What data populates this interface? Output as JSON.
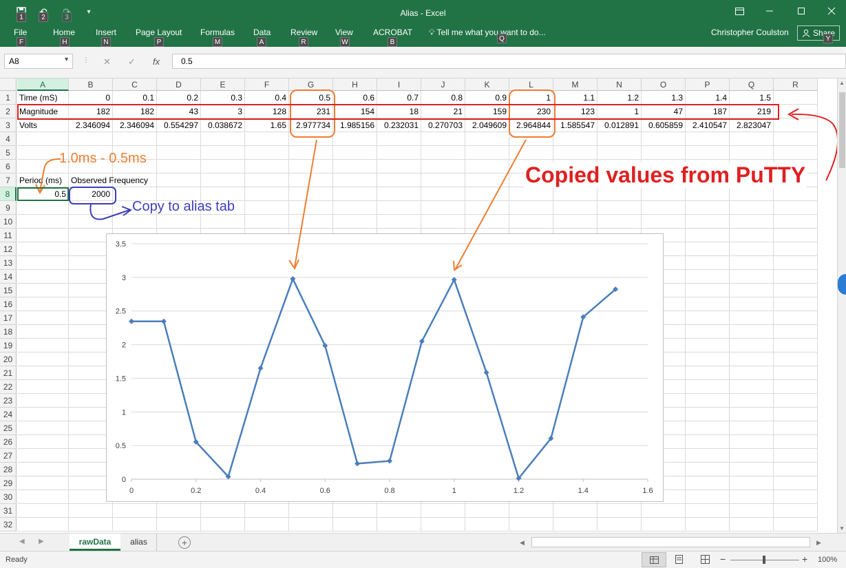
{
  "window": {
    "title": "Alias - Excel",
    "user": "Christopher Coulston",
    "share_label": "Share",
    "tell_me": "Tell me what you want to do...",
    "tabs": [
      {
        "label": "File",
        "key": "F"
      },
      {
        "label": "Home",
        "key": "H"
      },
      {
        "label": "Insert",
        "key": "N"
      },
      {
        "label": "Page Layout",
        "key": "P"
      },
      {
        "label": "Formulas",
        "key": "M"
      },
      {
        "label": "Data",
        "key": "A"
      },
      {
        "label": "Review",
        "key": "R"
      },
      {
        "label": "View",
        "key": "W"
      },
      {
        "label": "ACROBAT",
        "key": "B"
      }
    ],
    "tell_me_key": "Q",
    "share_key": "Y",
    "qat_keys": [
      "1",
      "2",
      "3"
    ]
  },
  "formula_bar": {
    "name_box": "A8",
    "value": "0.5",
    "fx": "fx"
  },
  "columns": [
    "A",
    "B",
    "C",
    "D",
    "E",
    "F",
    "G",
    "H",
    "I",
    "J",
    "K",
    "L",
    "M",
    "N",
    "O",
    "P",
    "Q",
    "R"
  ],
  "rows": [
    "1",
    "2",
    "3",
    "4",
    "5",
    "6",
    "7",
    "8",
    "9",
    "10",
    "11",
    "12",
    "13",
    "14",
    "15",
    "16",
    "17",
    "18",
    "19",
    "20",
    "21",
    "22",
    "23",
    "24",
    "25",
    "26",
    "27",
    "28",
    "29",
    "30",
    "31",
    "32"
  ],
  "sheet": {
    "row1": {
      "label": "Time (mS)",
      "values": [
        "0",
        "0.1",
        "0.2",
        "0.3",
        "0.4",
        "0.5",
        "0.6",
        "0.7",
        "0.8",
        "0.9",
        "1",
        "1.1",
        "1.2",
        "1.3",
        "1.4",
        "1.5"
      ]
    },
    "row2": {
      "label": "Magnitude",
      "values": [
        "182",
        "182",
        "43",
        "3",
        "128",
        "231",
        "154",
        "18",
        "21",
        "159",
        "230",
        "123",
        "1",
        "47",
        "187",
        "219"
      ]
    },
    "row3": {
      "label": "Volts",
      "values": [
        "2.346094",
        "2.346094",
        "0.554297",
        "0.038672",
        "1.65",
        "2.977734",
        "1.985156",
        "0.232031",
        "0.270703",
        "2.049609",
        "2.964844",
        "1.585547",
        "0.012891",
        "0.605859",
        "2.410547",
        "2.823047"
      ]
    },
    "row7": {
      "a": "Period (ms)",
      "b": "Observed Frequency"
    },
    "row8": {
      "a": "0.5",
      "b": "2000"
    }
  },
  "annotations": {
    "period_note": "1.0ms - 0.5ms",
    "copy_note": "Copy to alias tab",
    "putty_note": "Copied values from PuTTY",
    "colors": {
      "orange": "#ed7d31",
      "blue": "#3d3dbd",
      "red": "#e02020"
    }
  },
  "chart_data": {
    "type": "line",
    "x": [
      0,
      0.1,
      0.2,
      0.3,
      0.4,
      0.5,
      0.6,
      0.7,
      0.8,
      0.9,
      1,
      1.1,
      1.2,
      1.3,
      1.4,
      1.5
    ],
    "series": [
      {
        "values": [
          2.346094,
          2.346094,
          0.554297,
          0.038672,
          1.65,
          2.977734,
          1.985156,
          0.232031,
          0.270703,
          2.049609,
          2.964844,
          1.585547,
          0.012891,
          0.605859,
          2.410547,
          2.823047
        ],
        "color": "#4a7ebb"
      }
    ],
    "xlim": [
      0,
      1.6
    ],
    "ylim": [
      0,
      3.5
    ],
    "x_ticks": [
      "0",
      "0.2",
      "0.4",
      "0.6",
      "0.8",
      "1",
      "1.2",
      "1.4",
      "1.6"
    ],
    "y_ticks": [
      "0",
      "0.5",
      "1",
      "1.5",
      "2",
      "2.5",
      "3",
      "3.5"
    ],
    "grid": "horizontal",
    "legend": "none"
  },
  "sheet_tabs": [
    "rawData",
    "alias"
  ],
  "active_sheet": "rawData",
  "status": {
    "ready": "Ready",
    "zoom": "100%"
  }
}
